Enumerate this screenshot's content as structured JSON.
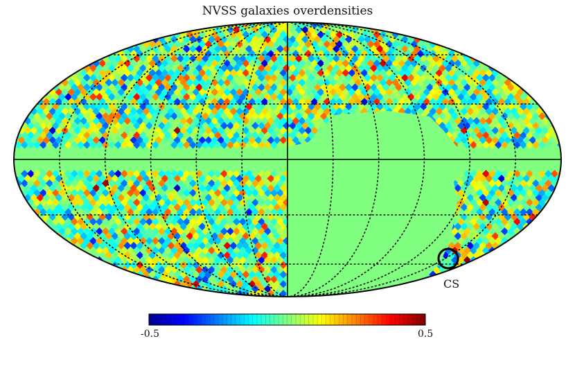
{
  "title": "NVSS galaxies overdensities",
  "region_label": "CS",
  "colorbar": {
    "min_label": "-0.5",
    "max_label": "0.5",
    "colormap": "jet",
    "min": -0.5,
    "max": 0.5
  },
  "map": {
    "projection": "Mollweide",
    "mask_color": "#80ff80",
    "graticule": "dotted",
    "cold_spot_circle": true
  }
}
